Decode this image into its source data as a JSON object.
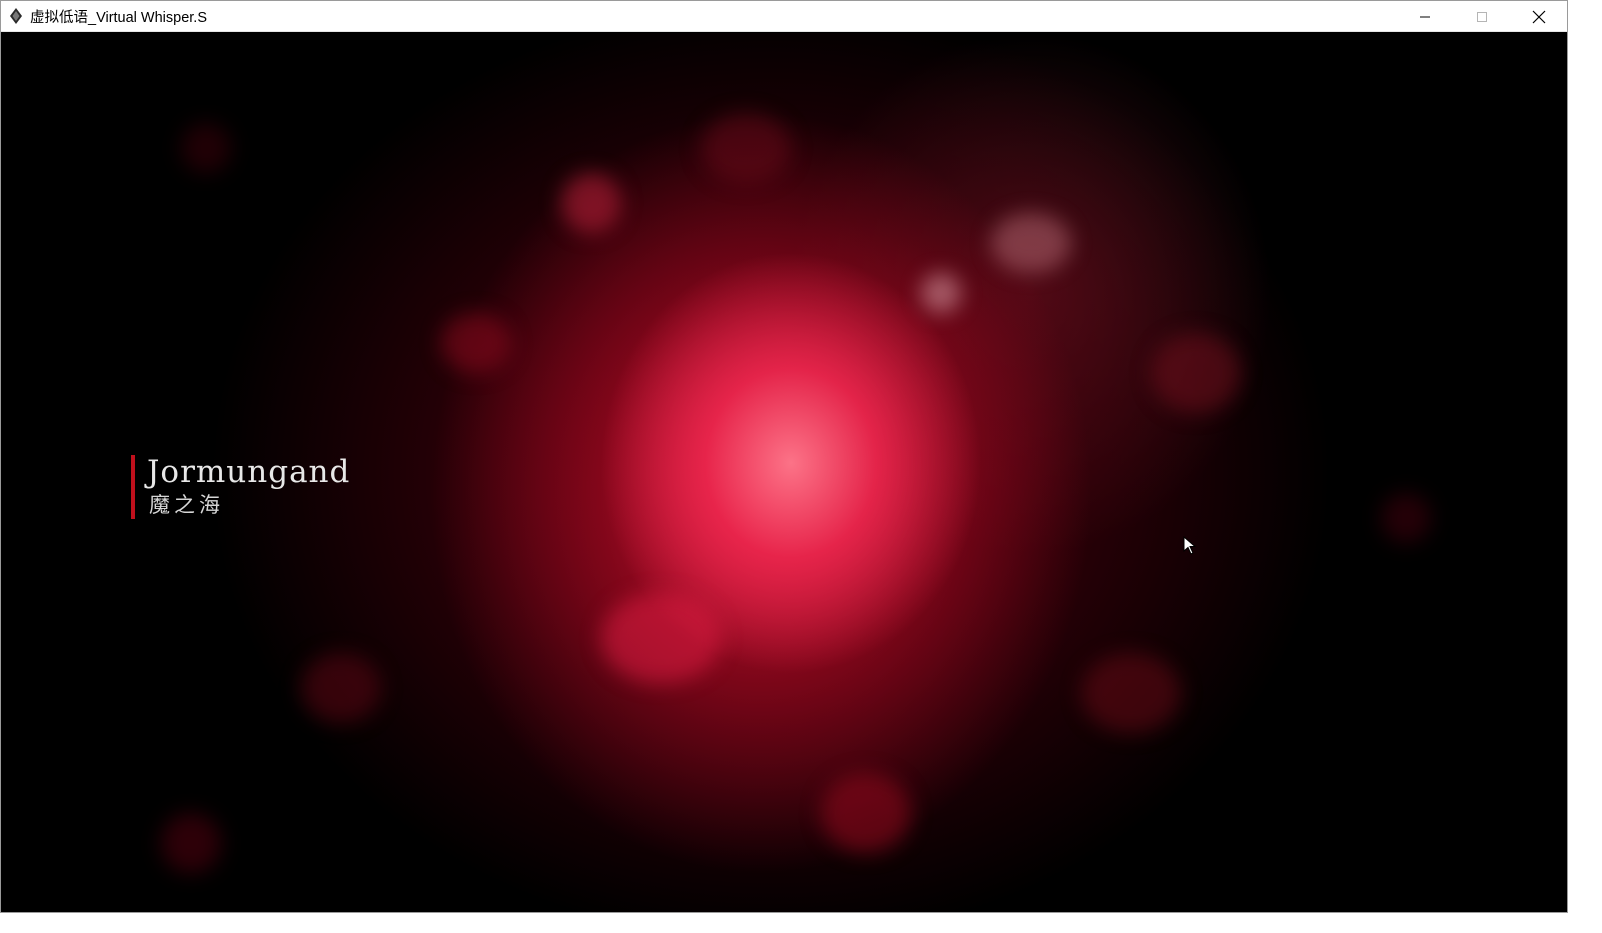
{
  "window": {
    "title": "虚拟低语_Virtual Whisper.S",
    "app_icon": "diamond-icon",
    "controls": [
      "minimize-icon",
      "maximize-icon",
      "close-icon"
    ]
  },
  "scene": {
    "location_name": "Jormungand",
    "location_subtitle": "魔之海",
    "accent_color": "#c0101c",
    "glow_color": "#e8204a"
  }
}
